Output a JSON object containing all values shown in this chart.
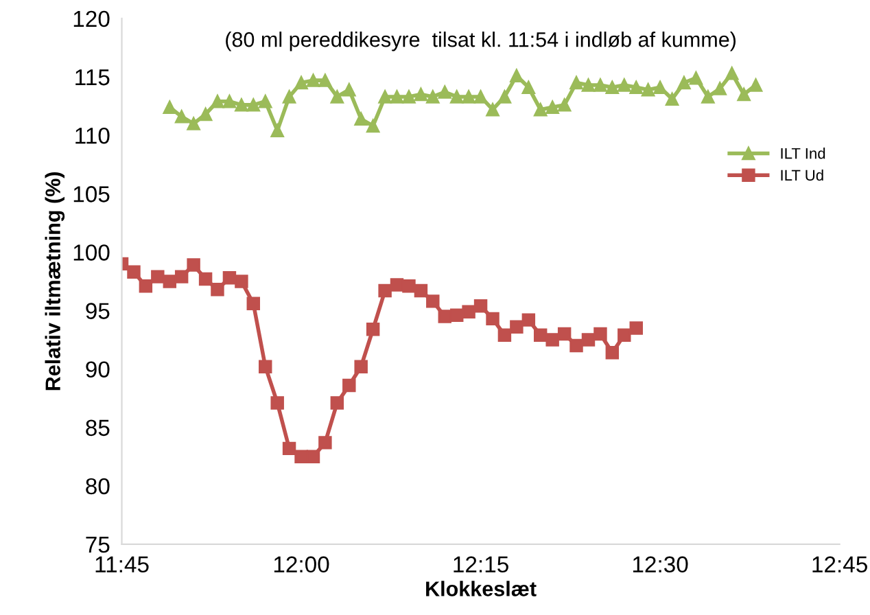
{
  "chart_data": {
    "type": "line",
    "subtitle": "(80 ml pereddikesyre  tilsat kl. 11:54 i indløb af kumme)",
    "xlabel": "Klokkeslæt",
    "ylabel": "Relativ iltmætning (%)",
    "xlim": [
      11.75,
      12.75
    ],
    "xticks": [
      {
        "value": 11.75,
        "label": "11:45"
      },
      {
        "value": 12.0,
        "label": "12:00"
      },
      {
        "value": 12.25,
        "label": "12:15"
      },
      {
        "value": 12.5,
        "label": "12:30"
      },
      {
        "value": 12.75,
        "label": "12:45"
      }
    ],
    "ylim": [
      75,
      120
    ],
    "yticks": [
      75,
      80,
      85,
      90,
      95,
      100,
      105,
      110,
      115,
      120
    ],
    "grid": false,
    "legend": "right",
    "series": [
      {
        "name": "ILT Ind",
        "color": "#9bbb59",
        "marker": "triangle",
        "x": [
          11.8167,
          11.8333,
          11.85,
          11.8667,
          11.8833,
          11.9,
          11.9167,
          11.9333,
          11.95,
          11.9667,
          11.9833,
          12.0,
          12.0167,
          12.0333,
          12.05,
          12.0667,
          12.0833,
          12.1,
          12.1167,
          12.1333,
          12.15,
          12.1667,
          12.1833,
          12.2,
          12.2167,
          12.2333,
          12.25,
          12.2667,
          12.2833,
          12.3,
          12.3167,
          12.3333,
          12.35,
          12.3667,
          12.3833,
          12.4,
          12.4167,
          12.4333,
          12.45,
          12.4667,
          12.4833,
          12.5,
          12.5167,
          12.5333,
          12.55,
          12.5667,
          12.5833,
          12.6,
          12.6167,
          12.6333
        ],
        "values": [
          112.4,
          111.6,
          111.0,
          111.8,
          112.9,
          112.9,
          112.6,
          112.6,
          112.9,
          110.4,
          113.3,
          114.5,
          114.7,
          114.7,
          113.3,
          113.9,
          111.4,
          110.8,
          113.3,
          113.3,
          113.3,
          113.5,
          113.3,
          113.7,
          113.3,
          113.3,
          113.3,
          112.2,
          113.3,
          115.1,
          114.1,
          112.2,
          112.4,
          112.6,
          114.5,
          114.3,
          114.3,
          114.1,
          114.3,
          114.1,
          113.9,
          114.1,
          113.1,
          114.5,
          114.9,
          113.3,
          114.0,
          115.3,
          113.5,
          114.3
        ]
      },
      {
        "name": "ILT Ud",
        "color": "#c0504d",
        "marker": "square",
        "x": [
          11.75,
          11.7667,
          11.7833,
          11.8,
          11.8167,
          11.8333,
          11.85,
          11.8667,
          11.8833,
          11.9,
          11.9167,
          11.9333,
          11.95,
          11.9667,
          11.9833,
          12.0,
          12.0167,
          12.0333,
          12.05,
          12.0667,
          12.0833,
          12.1,
          12.1167,
          12.1333,
          12.15,
          12.1667,
          12.1833,
          12.2,
          12.2167,
          12.2333,
          12.25,
          12.2667,
          12.2833,
          12.3,
          12.3167,
          12.3333,
          12.35,
          12.3667,
          12.3833,
          12.4,
          12.4167,
          12.4333,
          12.45,
          12.4667
        ],
        "values": [
          99.0,
          98.3,
          97.1,
          97.9,
          97.5,
          97.9,
          98.9,
          97.7,
          96.8,
          97.8,
          97.5,
          95.6,
          90.2,
          87.1,
          83.2,
          82.5,
          82.5,
          83.7,
          87.1,
          88.6,
          90.2,
          93.4,
          96.7,
          97.2,
          97.1,
          96.7,
          95.8,
          94.5,
          94.6,
          94.9,
          95.4,
          94.3,
          92.9,
          93.6,
          94.2,
          92.9,
          92.5,
          93.0,
          92.0,
          92.5,
          93.0,
          91.4,
          92.9,
          93.5
        ]
      }
    ]
  }
}
